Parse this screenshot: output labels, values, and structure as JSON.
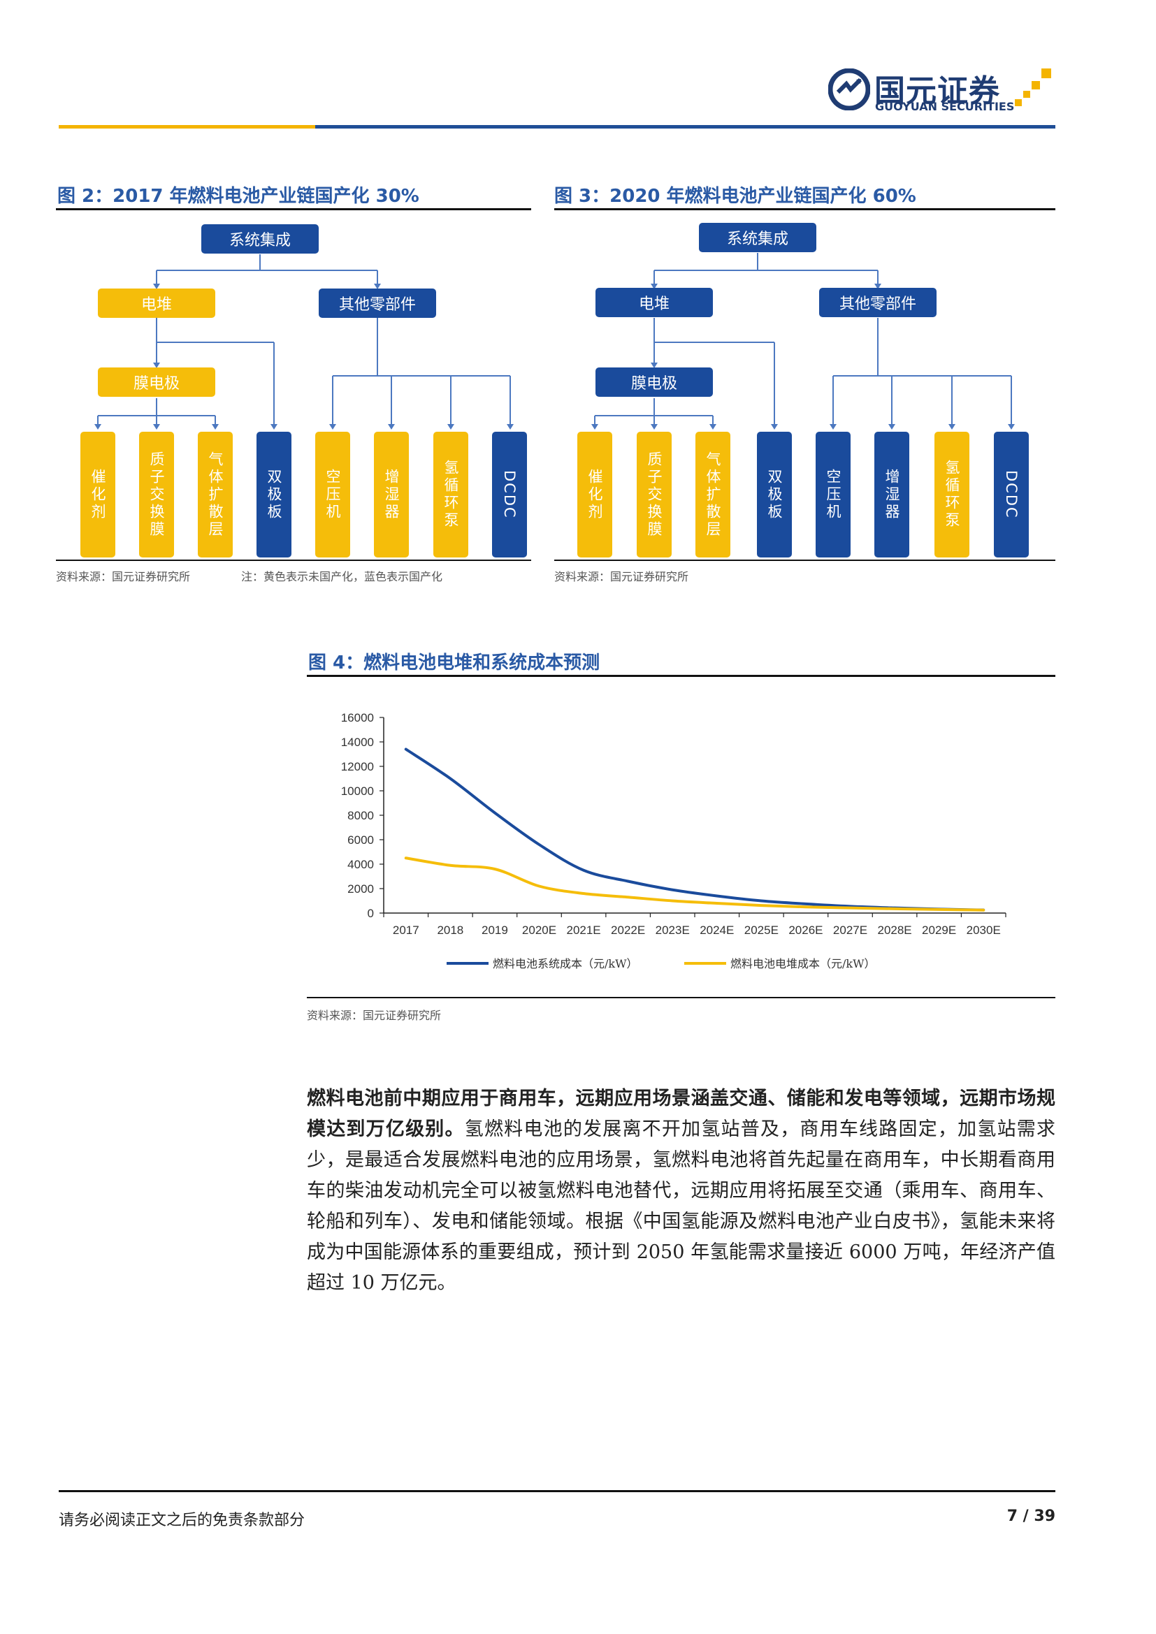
{
  "header": {
    "logo_cn": "国元证券",
    "logo_en": "GUOYUAN SECURITIES"
  },
  "colors": {
    "yellow": "#f5bd0a",
    "blue": "#1a4b9c",
    "title_blue": "#2a5aa5"
  },
  "fig2": {
    "title": "图 2：2017 年燃料电池产业链国产化 30%",
    "source": "资料来源：国元证券研究所",
    "note": "注：黄色表示未国产化，蓝色表示国产化",
    "nodes": {
      "root": "系统集成",
      "stack": "电堆",
      "other": "其他零部件",
      "mea": "膜电极",
      "leaves": [
        "催化剂",
        "质子交换膜",
        "气体扩散层",
        "双极板",
        "空压机",
        "增湿器",
        "氢循环泵",
        "DCDC"
      ]
    }
  },
  "fig3": {
    "title": "图 3：2020 年燃料电池产业链国产化 60%",
    "source": "资料来源：国元证券研究所",
    "nodes": {
      "root": "系统集成",
      "stack": "电堆",
      "other": "其他零部件",
      "mea": "膜电极",
      "leaves": [
        "催化剂",
        "质子交换膜",
        "气体扩散层",
        "双极板",
        "空压机",
        "增湿器",
        "氢循环泵",
        "DCDC"
      ]
    }
  },
  "fig4": {
    "title": "图 4：燃料电池电堆和系统成本预测",
    "source": "资料来源：国元证券研究所"
  },
  "chart_data": {
    "type": "line",
    "categories": [
      "2017",
      "2018",
      "2019",
      "2020E",
      "2021E",
      "2022E",
      "2023E",
      "2024E",
      "2025E",
      "2026E",
      "2027E",
      "2028E",
      "2029E",
      "2030E"
    ],
    "ylim": [
      0,
      16000
    ],
    "yticks": [
      0,
      2000,
      4000,
      6000,
      8000,
      10000,
      12000,
      14000,
      16000
    ],
    "legend_position": "bottom",
    "grid": false,
    "series": [
      {
        "name": "燃料电池系统成本（元/kW）",
        "color": "#1a4b9c",
        "values": [
          13400,
          11000,
          8200,
          5600,
          3500,
          2600,
          1900,
          1400,
          1000,
          750,
          550,
          420,
          320,
          250
        ]
      },
      {
        "name": "燃料电池电堆成本（元/kW）",
        "color": "#f5bd0a",
        "values": [
          4500,
          3900,
          3600,
          2200,
          1600,
          1300,
          1000,
          800,
          620,
          500,
          420,
          350,
          290,
          240
        ]
      }
    ]
  },
  "body": {
    "bold_lead": "燃料电池前中期应用于商用车，远期应用场景涵盖交通、储能和发电等领域，远期市场规模达到万亿级别。",
    "text": "氢燃料电池的发展离不开加氢站普及，商用车线路固定，加氢站需求少，是最适合发展燃料电池的应用场景，氢燃料电池将首先起量在商用车，中长期看商用车的柴油发动机完全可以被氢燃料电池替代，远期应用将拓展至交通（乘用车、商用车、轮船和列车）、发电和储能领域。根据《中国氢能源及燃料电池产业白皮书》，氢能未来将成为中国能源体系的重要组成，预计到 2050 年氢能需求量接近 6000 万吨，年经济产值超过 10 万亿元。"
  },
  "footer": {
    "disclaimer": "请务必阅读正文之后的免责条款部分",
    "page": "7 / 39"
  }
}
